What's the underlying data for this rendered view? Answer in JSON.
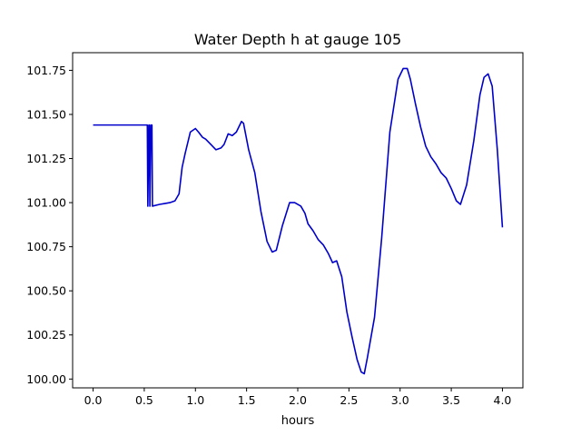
{
  "chart_data": {
    "type": "line",
    "title": "Water Depth h at gauge 105",
    "xlabel": "hours",
    "ylabel": "",
    "xlim": [
      -0.2,
      4.2
    ],
    "ylim": [
      99.95,
      101.85
    ],
    "xticks": [
      0.0,
      0.5,
      1.0,
      1.5,
      2.0,
      2.5,
      3.0,
      3.5,
      4.0
    ],
    "xtick_labels": [
      "0.0",
      "0.5",
      "1.0",
      "1.5",
      "2.0",
      "2.5",
      "3.0",
      "3.5",
      "4.0"
    ],
    "yticks": [
      100.0,
      100.25,
      100.5,
      100.75,
      101.0,
      101.25,
      101.5,
      101.75
    ],
    "ytick_labels": [
      "100.00",
      "100.25",
      "100.50",
      "100.75",
      "101.00",
      "101.25",
      "101.50",
      "101.75"
    ],
    "grid": false,
    "series": [
      {
        "name": "",
        "color": "#0000cc",
        "x": [
          0.0,
          0.1,
          0.2,
          0.3,
          0.4,
          0.5,
          0.53,
          0.535,
          0.545,
          0.55,
          0.555,
          0.565,
          0.57,
          0.575,
          0.58,
          0.65,
          0.7,
          0.75,
          0.8,
          0.84,
          0.87,
          0.9,
          0.95,
          1.0,
          1.03,
          1.07,
          1.1,
          1.15,
          1.2,
          1.25,
          1.28,
          1.32,
          1.36,
          1.4,
          1.45,
          1.47,
          1.52,
          1.58,
          1.64,
          1.7,
          1.75,
          1.79,
          1.85,
          1.92,
          1.97,
          2.03,
          2.07,
          2.1,
          2.15,
          2.2,
          2.25,
          2.3,
          2.34,
          2.38,
          2.43,
          2.48,
          2.53,
          2.58,
          2.62,
          2.65,
          2.68,
          2.75,
          2.82,
          2.9,
          2.98,
          3.03,
          3.07,
          3.1,
          3.15,
          3.2,
          3.25,
          3.3,
          3.35,
          3.4,
          3.45,
          3.5,
          3.55,
          3.59,
          3.65,
          3.72,
          3.78,
          3.82,
          3.86,
          3.9,
          3.95,
          4.0
        ],
        "y": [
          101.44,
          101.44,
          101.44,
          101.44,
          101.44,
          101.44,
          101.44,
          100.98,
          101.44,
          101.44,
          100.98,
          101.44,
          101.44,
          101.44,
          100.98,
          100.99,
          100.995,
          101.0,
          101.01,
          101.05,
          101.2,
          101.28,
          101.4,
          101.42,
          101.4,
          101.37,
          101.36,
          101.33,
          101.3,
          101.31,
          101.33,
          101.39,
          101.38,
          101.4,
          101.46,
          101.45,
          101.3,
          101.17,
          100.95,
          100.78,
          100.72,
          100.73,
          100.87,
          101.0,
          101.0,
          100.98,
          100.94,
          100.88,
          100.84,
          100.79,
          100.76,
          100.71,
          100.66,
          100.67,
          100.58,
          100.38,
          100.24,
          100.11,
          100.04,
          100.03,
          100.12,
          100.35,
          100.8,
          101.4,
          101.7,
          101.76,
          101.76,
          101.7,
          101.56,
          101.43,
          101.32,
          101.26,
          101.22,
          101.17,
          101.14,
          101.08,
          101.01,
          100.99,
          101.1,
          101.35,
          101.61,
          101.71,
          101.73,
          101.66,
          101.3,
          100.86
        ]
      }
    ]
  }
}
